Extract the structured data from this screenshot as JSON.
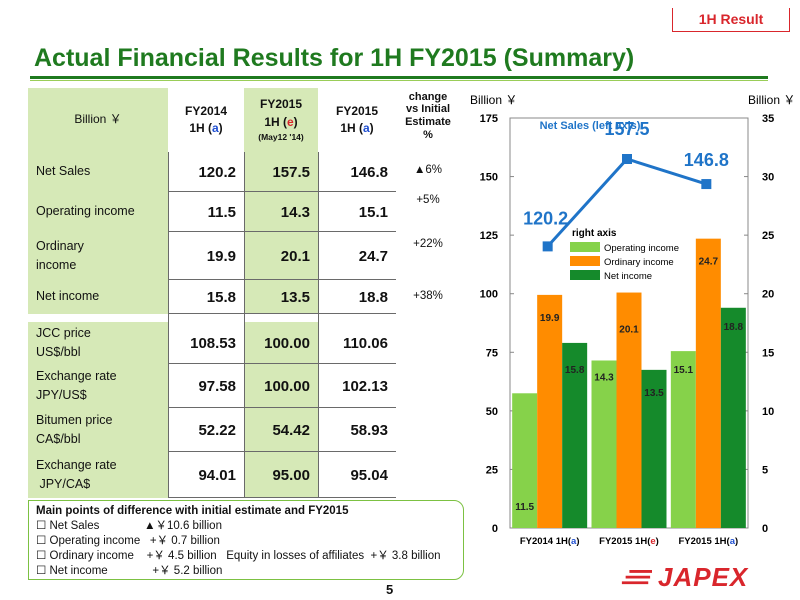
{
  "tag": "1H Result",
  "title": "Actual Financial Results for 1H FY2015  (Summary)",
  "table": {
    "unit_label": "Billion ￥",
    "col1": {
      "line1": "FY2014",
      "line2a": "1H (",
      "line2b": "a",
      "line2c": ")"
    },
    "col2": {
      "line1": "FY2015",
      "line2a": "1H (",
      "line2b": "e",
      "line2c": ")",
      "line3": "(May12 '14)"
    },
    "col3": {
      "line1": "FY2015",
      "line2a": "1H (",
      "line2b": "a",
      "line2c": ")"
    },
    "change_header": {
      "line1": "change",
      "line2": "vs Initial",
      "line3": "Estimate",
      "line4": "%"
    },
    "rows": [
      {
        "label1": "Net Sales",
        "label2": "",
        "v1": "120.2",
        "v2": "157.5",
        "v3": "146.8",
        "change": "▲6%"
      },
      {
        "label1": "Operating income",
        "label2": "",
        "v1": "11.5",
        "v2": "14.3",
        "v3": "15.1",
        "change": "+5%"
      },
      {
        "label1": "Ordinary",
        "label2": "income",
        "v1": "19.9",
        "v2": "20.1",
        "v3": "24.7",
        "change": "+22%"
      },
      {
        "label1": "Net income",
        "label2": "",
        "v1": "15.8",
        "v2": "13.5",
        "v3": "18.8",
        "change": "+38%"
      }
    ],
    "rows2": [
      {
        "label1": "JCC price",
        "label2": "US$/bbl",
        "v1": "108.53",
        "v2": "100.00",
        "v3": "110.06"
      },
      {
        "label1": "Exchange rate",
        "label2": "JPY/US$",
        "v1": "97.58",
        "v2": "100.00",
        "v3": "102.13"
      },
      {
        "label1": "Bitumen price",
        "label2": "CA$/bbl",
        "v1": "52.22",
        "v2": "54.42",
        "v3": "58.93"
      },
      {
        "label1": "Exchange rate",
        "label2": " JPY/CA$",
        "v1": "94.01",
        "v2": "95.00",
        "v3": "95.04"
      }
    ]
  },
  "notes": {
    "title": "Main points of difference with initial estimate and FY2015",
    "lines": [
      "☐ Net Sales              ▲￥10.6 billion",
      "☐ Operating income   +￥ 0.7 billion",
      "☐ Ordinary income    +￥ 4.5 billion   Equity in losses of affiliates  +￥ 3.8 billion",
      "☐ Net income              +￥ 5.2 billion"
    ]
  },
  "page_number": "5",
  "logo": "JAPEX",
  "colors": {
    "green_dark": "#1f7a1f",
    "green_light": "#7cc142",
    "orange": "#ff8c00",
    "blue": "#1f74c8",
    "red": "#d9262c",
    "cell_bg": "#d6e9b7"
  },
  "chart_data": {
    "type": "bar",
    "categories_parts": [
      [
        "FY2014 1H(",
        "a",
        ")"
      ],
      [
        "FY2015 1H(",
        "e",
        ")"
      ],
      [
        "FY2015 1H(",
        "a",
        ")"
      ]
    ],
    "left_axis": {
      "label": "Billion ￥",
      "min": 0,
      "max": 175,
      "ticks": [
        "0",
        "25",
        "50",
        "75",
        "100",
        "125",
        "150",
        "175"
      ]
    },
    "right_axis": {
      "label": "Billion ￥",
      "min": 0,
      "max": 35,
      "ticks": [
        "0",
        "5",
        "10",
        "15",
        "20",
        "25",
        "30",
        "35"
      ]
    },
    "line_series": {
      "name": "Net Sales (left axis)",
      "values": [
        120.2,
        157.5,
        146.8
      ],
      "labels": [
        "120.2",
        "157.5",
        "146.8"
      ]
    },
    "bar_series": [
      {
        "name": "Operating income",
        "values": [
          11.5,
          14.3,
          15.1
        ],
        "labels": [
          "11.5",
          "14.3",
          "15.1"
        ],
        "color": "#86d24a"
      },
      {
        "name": "Ordinary income",
        "values": [
          19.9,
          20.1,
          24.7
        ],
        "labels": [
          "19.9",
          "20.1",
          "24.7"
        ],
        "color": "#ff8c00"
      },
      {
        "name": "Net income",
        "values": [
          15.8,
          13.5,
          18.8
        ],
        "labels": [
          "15.8",
          "13.5",
          "18.8"
        ],
        "color": "#158a2b"
      }
    ],
    "legend_title": "right axis",
    "legend_position": "middle-center"
  }
}
